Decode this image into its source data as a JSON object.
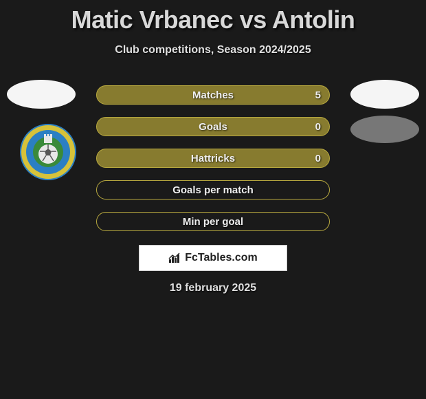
{
  "title": "Matic Vrbanec vs Antolin",
  "subtitle": "Club competitions, Season 2024/2025",
  "date": "19 february 2025",
  "site_name": "FcTables.com",
  "colors": {
    "bg": "#1a1a1a",
    "text": "#e0e0e0",
    "row_fill": "#877b2f",
    "row_border": "#b8a93f",
    "row_empty_border": "#b8a93f",
    "badge_blue": "#2b7fc3",
    "badge_yellow": "#d6c23a",
    "badge_green": "#3a8a3a"
  },
  "club_badge_text": "NK CMC PUBLIKUM",
  "stats": [
    {
      "label": "Matches",
      "value": "5",
      "filled": true
    },
    {
      "label": "Goals",
      "value": "0",
      "filled": true
    },
    {
      "label": "Hattricks",
      "value": "0",
      "filled": true
    },
    {
      "label": "Goals per match",
      "value": "",
      "filled": false
    },
    {
      "label": "Min per goal",
      "value": "",
      "filled": false
    }
  ]
}
